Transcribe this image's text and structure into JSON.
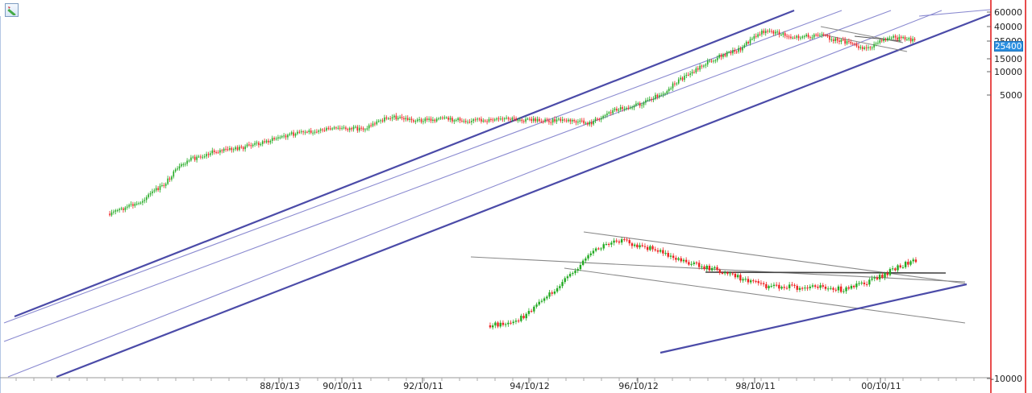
{
  "toolbar": {
    "drawing_tool_icon": "pencil-icon"
  },
  "price_axis": {
    "labels": [
      "60000",
      "40000",
      "25000",
      "15000",
      "10000",
      "5000",
      "-10000"
    ],
    "current_value": "25400"
  },
  "colors": {
    "up_candle": "#22aa22",
    "down_candle": "#ee2222",
    "trend_line": "#4b4ba8",
    "channel_line": "#8a8ad0",
    "gray_line": "#888888",
    "badge": "#2b8fe0",
    "right_border": "#e01010"
  },
  "chart_data": {
    "type": "line",
    "title": "",
    "xlabel": "",
    "ylabel": "",
    "y_scale": "log",
    "x_ticks": [
      "88/10/13",
      "90/10/11",
      "92/10/11",
      "94/10/12",
      "96/10/12",
      "98/10/11",
      "00/10/11"
    ],
    "y_ticks": [
      60000,
      40000,
      25000,
      15000,
      10000,
      5000,
      -10000
    ],
    "last_value": 25400,
    "grid": false,
    "legend": "none",
    "series": [
      {
        "x": [
          "1985/06",
          "1986/01",
          "1986/07",
          "1987/01",
          "1987/07",
          "1988/01",
          "1988/07",
          "1989/01",
          "1989/07",
          "1990/01",
          "1990/07",
          "1991/01",
          "1991/07",
          "1992/01",
          "1992/07",
          "1993/01",
          "1993/07",
          "1994/01",
          "1994/07",
          "1995/01",
          "1995/07",
          "1996/01",
          "1996/07",
          "1997/01",
          "1997/07",
          "1998/01",
          "1998/07",
          "1999/01",
          "1999/07",
          "2000/01",
          "2000/07",
          "2001/01",
          "2001/07"
        ],
        "values": [
          140,
          190,
          330,
          700,
          900,
          1000,
          1200,
          1500,
          1700,
          1800,
          1800,
          2600,
          2300,
          2400,
          2300,
          2300,
          2400,
          2300,
          2300,
          2100,
          3200,
          3800,
          5500,
          9500,
          15000,
          20000,
          35000,
          28000,
          30000,
          25000,
          20000,
          28000,
          25400
        ]
      },
      {
        "x": [
          "1993/01",
          "1993/07",
          "1994/01",
          "1994/07",
          "1995/01",
          "1995/07",
          "1996/01",
          "1996/07",
          "1997/01",
          "1997/07",
          "1998/01",
          "1998/07",
          "1999/01",
          "1999/07",
          "2000/01",
          "2000/07",
          "2001/01",
          "2001/07"
        ],
        "values": [
          1200,
          1300,
          2600,
          3800,
          5400,
          6200,
          5800,
          5400,
          4800,
          4400,
          3900,
          3500,
          3400,
          3500,
          3300,
          3600,
          4400,
          5000
        ]
      }
    ]
  }
}
